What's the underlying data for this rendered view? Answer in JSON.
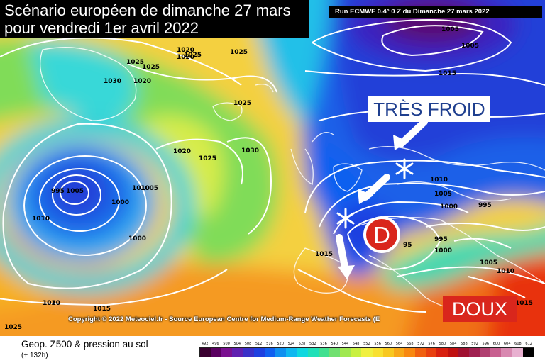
{
  "title": {
    "line1": "Scénario européen de dimanche 27 mars",
    "line2": "pour vendredi 1er avril 2022"
  },
  "run_label": "Run ECMWF 0.4° 0 Z du Dimanche 27 mars 2022",
  "annotations": {
    "cold": "TRÈS FROID",
    "warm": "DOUX",
    "depression": "D"
  },
  "copyright": "Copyright © 2022 Meteociel.fr - Source European Centre for Medium-Range Weather Forecasts (E",
  "footer": {
    "variable": "Geop. Z500 & pression au sol",
    "hours": "(+ 132h)"
  },
  "legend_scale": {
    "values": [
      "492",
      "496",
      "500",
      "504",
      "508",
      "512",
      "516",
      "520",
      "524",
      "528",
      "532",
      "536",
      "540",
      "544",
      "548",
      "552",
      "556",
      "560",
      "564",
      "568",
      "572",
      "576",
      "580",
      "584",
      "588",
      "592",
      "596",
      "600",
      "604",
      "608",
      "612"
    ],
    "colors": [
      "#3a0030",
      "#5a0060",
      "#7a1090",
      "#6020b0",
      "#3a30c8",
      "#1e40e0",
      "#1060f0",
      "#1090f0",
      "#10b8f0",
      "#10d8e0",
      "#20e0b8",
      "#40e090",
      "#70e070",
      "#a0e850",
      "#c8f040",
      "#f0f040",
      "#f8e030",
      "#f8c820",
      "#f8a818",
      "#f88810",
      "#f06010",
      "#e84010",
      "#d82010",
      "#c01010",
      "#a01030",
      "#a02050",
      "#b04070",
      "#c86090",
      "#d888b0",
      "#e8b0d0",
      "#000000"
    ]
  },
  "isobar_labels": [
    {
      "text": "1025"
    },
    {
      "text": "1020"
    },
    {
      "text": "1020"
    },
    {
      "text": "1025"
    },
    {
      "text": "1025"
    },
    {
      "text": "1025"
    },
    {
      "text": "1030"
    },
    {
      "text": "1020"
    },
    {
      "text": "1025"
    },
    {
      "text": "1020"
    },
    {
      "text": "1025"
    },
    {
      "text": "1030"
    },
    {
      "text": "1010"
    },
    {
      "text": "995"
    },
    {
      "text": "1005"
    },
    {
      "text": "1000"
    },
    {
      "text": "1010"
    },
    {
      "text": "1005"
    },
    {
      "text": "1000"
    },
    {
      "text": "1010"
    },
    {
      "text": "1020"
    },
    {
      "text": "1015"
    },
    {
      "text": "1025"
    },
    {
      "text": "1005"
    },
    {
      "text": "1005"
    },
    {
      "text": "1015"
    },
    {
      "text": "1010"
    },
    {
      "text": "1005"
    },
    {
      "text": "1000"
    },
    {
      "text": "995"
    },
    {
      "text": "995"
    },
    {
      "text": "1000"
    },
    {
      "text": "1015"
    },
    {
      "text": "1005"
    },
    {
      "text": "1010"
    },
    {
      "text": "1015"
    },
    {
      "text": "95"
    }
  ]
}
